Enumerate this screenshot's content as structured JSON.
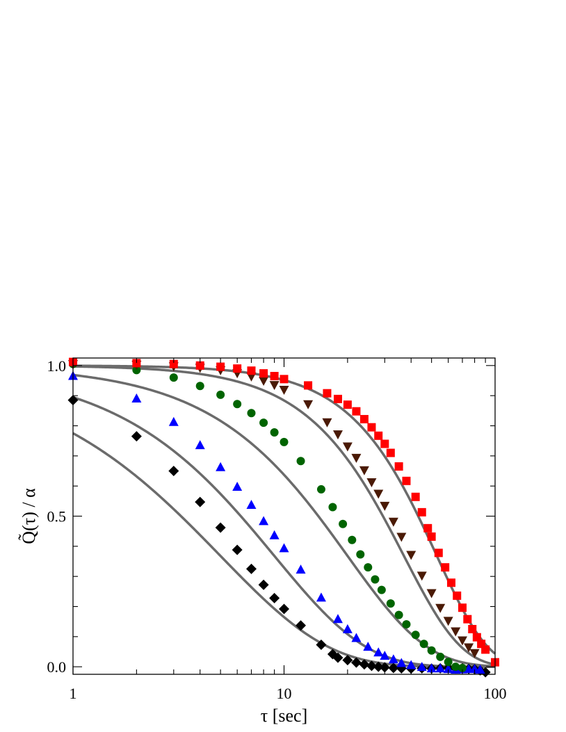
{
  "chart_data": {
    "type": "scatter",
    "title": "",
    "xlabel": "τ [sec]",
    "ylabel": "Q̃(τ) / α",
    "x_scale": "log",
    "xlim": [
      1,
      100
    ],
    "ylim": [
      -0.025,
      1.025
    ],
    "x_ticks": [
      1,
      10,
      100
    ],
    "x_tick_labels": [
      "1",
      "10",
      "100"
    ],
    "y_ticks": [
      0.0,
      0.5,
      1.0
    ],
    "y_tick_labels": [
      "0.0",
      "0.5",
      "1.0"
    ],
    "grid": false,
    "legend": "none",
    "fit_line_color": "#6b6b6b",
    "series": [
      {
        "marker": "diamond",
        "color": "#000000",
        "tau": 5,
        "x": [
          1,
          2,
          3,
          4,
          5,
          6,
          7,
          8,
          9,
          10,
          12,
          15,
          17,
          18,
          20,
          22,
          24,
          26,
          28,
          30,
          33,
          36,
          40,
          45,
          50,
          55,
          60,
          65,
          70,
          75,
          80,
          85,
          90
        ],
        "y": [
          0.885,
          0.765,
          0.65,
          0.547,
          0.462,
          0.388,
          0.325,
          0.272,
          0.228,
          0.192,
          0.137,
          0.073,
          0.042,
          0.03,
          0.022,
          0.014,
          0.008,
          0.003,
          0.0,
          -0.002,
          -0.004,
          -0.005,
          -0.006,
          -0.005,
          -0.006,
          -0.005,
          -0.004,
          -0.006,
          -0.005,
          -0.007,
          -0.008,
          -0.012,
          -0.018
        ]
      },
      {
        "marker": "triangle-up",
        "color": "#0000ff",
        "tau": 9,
        "x": [
          1,
          2,
          3,
          4,
          5,
          6,
          7,
          8,
          9,
          10,
          12,
          15,
          18,
          20,
          22,
          25,
          28,
          30,
          33,
          36,
          40,
          45,
          50,
          55,
          60,
          65,
          70,
          75,
          80,
          85
        ],
        "y": [
          0.965,
          0.89,
          0.812,
          0.735,
          0.662,
          0.597,
          0.537,
          0.483,
          0.436,
          0.393,
          0.322,
          0.229,
          0.158,
          0.124,
          0.095,
          0.066,
          0.047,
          0.036,
          0.024,
          0.012,
          0.005,
          -0.001,
          -0.006,
          -0.006,
          -0.008,
          -0.01,
          -0.009,
          -0.008,
          -0.008,
          -0.01
        ]
      },
      {
        "marker": "circle",
        "color": "#006400",
        "tau": 20,
        "x": [
          1,
          2,
          3,
          4,
          5,
          6,
          7,
          8,
          9,
          10,
          12,
          15,
          17,
          19,
          21,
          23,
          25,
          27,
          29,
          32,
          35,
          38,
          42,
          46,
          50,
          55,
          60,
          65,
          70
        ],
        "y": [
          1.005,
          0.985,
          0.96,
          0.932,
          0.903,
          0.872,
          0.842,
          0.81,
          0.778,
          0.746,
          0.683,
          0.589,
          0.53,
          0.474,
          0.421,
          0.373,
          0.33,
          0.29,
          0.255,
          0.21,
          0.172,
          0.141,
          0.106,
          0.076,
          0.054,
          0.033,
          0.016,
          0.0,
          -0.004
        ]
      },
      {
        "marker": "triangle-down",
        "color": "#4a1a05",
        "tau": 37,
        "x": [
          1,
          2,
          3,
          4,
          5,
          6,
          7,
          8,
          9,
          10,
          13,
          16,
          18,
          20,
          22,
          24,
          26,
          28,
          30,
          33,
          36,
          40,
          45,
          50,
          55,
          60,
          65,
          70,
          75,
          80
        ],
        "y": [
          1.005,
          1.003,
          0.998,
          0.993,
          0.985,
          0.975,
          0.964,
          0.95,
          0.936,
          0.92,
          0.872,
          0.812,
          0.772,
          0.732,
          0.694,
          0.653,
          0.613,
          0.575,
          0.535,
          0.482,
          0.432,
          0.372,
          0.303,
          0.245,
          0.196,
          0.153,
          0.118,
          0.088,
          0.065,
          0.046
        ]
      },
      {
        "marker": "square",
        "color": "#ff0000",
        "tau": 53,
        "x": [
          1,
          2,
          3,
          4,
          5,
          6,
          7,
          8,
          9,
          10,
          13,
          16,
          18,
          20,
          22,
          24,
          26,
          28,
          30,
          32,
          35,
          38,
          42,
          45,
          48,
          50,
          54,
          58,
          62,
          66,
          70,
          74,
          78,
          82,
          86,
          90,
          100
        ],
        "y": [
          1.012,
          1.008,
          1.005,
          1.0,
          0.996,
          0.99,
          0.983,
          0.974,
          0.965,
          0.955,
          0.934,
          0.908,
          0.889,
          0.87,
          0.848,
          0.822,
          0.795,
          0.767,
          0.74,
          0.71,
          0.665,
          0.617,
          0.564,
          0.513,
          0.46,
          0.432,
          0.378,
          0.33,
          0.279,
          0.236,
          0.196,
          0.158,
          0.125,
          0.098,
          0.076,
          0.057,
          0.015
        ]
      }
    ]
  }
}
